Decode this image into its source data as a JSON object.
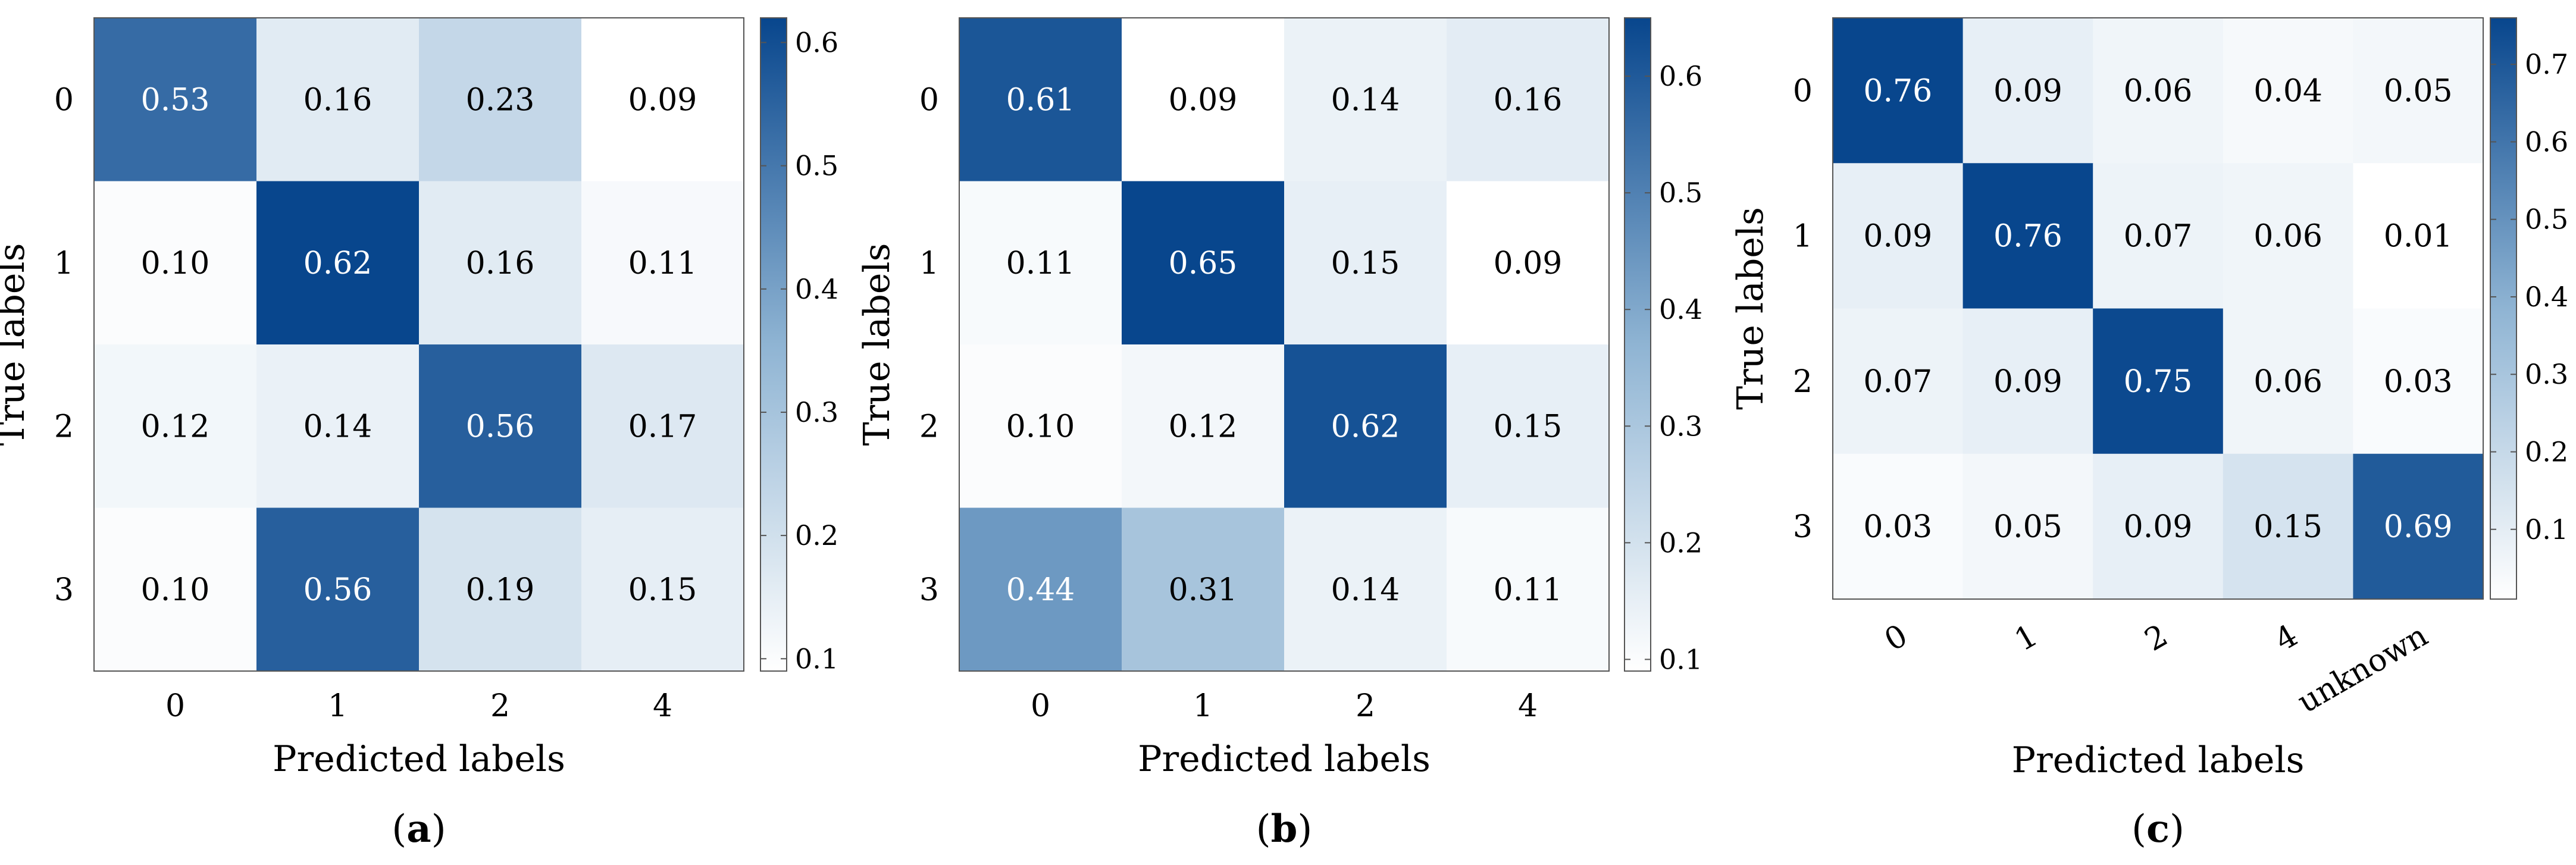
{
  "colorscale": {
    "low": "#ffffff",
    "mid": "#8fb4d3",
    "high": "#08468d"
  },
  "chart_data": [
    {
      "type": "heatmap",
      "panel_label": "a",
      "xlabel": "Predicted labels",
      "ylabel": "True labels",
      "x_categories": [
        "0",
        "1",
        "2",
        "4"
      ],
      "y_categories": [
        "0",
        "1",
        "2",
        "3"
      ],
      "values": [
        [
          0.53,
          0.16,
          0.23,
          0.09
        ],
        [
          0.1,
          0.62,
          0.16,
          0.11
        ],
        [
          0.12,
          0.14,
          0.56,
          0.17
        ],
        [
          0.1,
          0.56,
          0.19,
          0.15
        ]
      ],
      "cell_labels": [
        [
          "0.53",
          "0.16",
          "0.23",
          "0.09"
        ],
        [
          "0.10",
          "0.62",
          "0.16",
          "0.11"
        ],
        [
          "0.12",
          "0.14",
          "0.56",
          "0.17"
        ],
        [
          "0.10",
          "0.56",
          "0.19",
          "0.15"
        ]
      ],
      "colorbar": {
        "range": [
          0.09,
          0.62
        ],
        "ticks": [
          "0.1",
          "0.2",
          "0.3",
          "0.4",
          "0.5",
          "0.6"
        ]
      }
    },
    {
      "type": "heatmap",
      "panel_label": "b",
      "xlabel": "Predicted labels",
      "ylabel": "True labels",
      "x_categories": [
        "0",
        "1",
        "2",
        "4"
      ],
      "y_categories": [
        "0",
        "1",
        "2",
        "3"
      ],
      "values": [
        [
          0.61,
          0.09,
          0.14,
          0.16
        ],
        [
          0.11,
          0.65,
          0.15,
          0.09
        ],
        [
          0.1,
          0.12,
          0.62,
          0.15
        ],
        [
          0.44,
          0.31,
          0.14,
          0.11
        ]
      ],
      "cell_labels": [
        [
          "0.61",
          "0.09",
          "0.14",
          "0.16"
        ],
        [
          "0.11",
          "0.65",
          "0.15",
          "0.09"
        ],
        [
          "0.10",
          "0.12",
          "0.62",
          "0.15"
        ],
        [
          "0.44",
          "0.31",
          "0.14",
          "0.11"
        ]
      ],
      "colorbar": {
        "range": [
          0.09,
          0.65
        ],
        "ticks": [
          "0.1",
          "0.2",
          "0.3",
          "0.4",
          "0.5",
          "0.6"
        ]
      }
    },
    {
      "type": "heatmap",
      "panel_label": "c",
      "xlabel": "Predicted labels",
      "ylabel": "True labels",
      "x_categories": [
        "0",
        "1",
        "2",
        "4",
        "unknown"
      ],
      "y_categories": [
        "0",
        "1",
        "2",
        "3"
      ],
      "values": [
        [
          0.76,
          0.09,
          0.06,
          0.04,
          0.05
        ],
        [
          0.09,
          0.76,
          0.07,
          0.06,
          0.01
        ],
        [
          0.07,
          0.09,
          0.75,
          0.06,
          0.03
        ],
        [
          0.03,
          0.05,
          0.09,
          0.15,
          0.69
        ]
      ],
      "cell_labels": [
        [
          "0.76",
          "0.09",
          "0.06",
          "0.04",
          "0.05"
        ],
        [
          "0.09",
          "0.76",
          "0.07",
          "0.06",
          "0.01"
        ],
        [
          "0.07",
          "0.09",
          "0.75",
          "0.06",
          "0.03"
        ],
        [
          "0.03",
          "0.05",
          "0.09",
          "0.15",
          "0.69"
        ]
      ],
      "colorbar": {
        "range": [
          0.01,
          0.76
        ],
        "ticks": [
          "0.1",
          "0.2",
          "0.3",
          "0.4",
          "0.5",
          "0.6",
          "0.7"
        ]
      }
    }
  ]
}
